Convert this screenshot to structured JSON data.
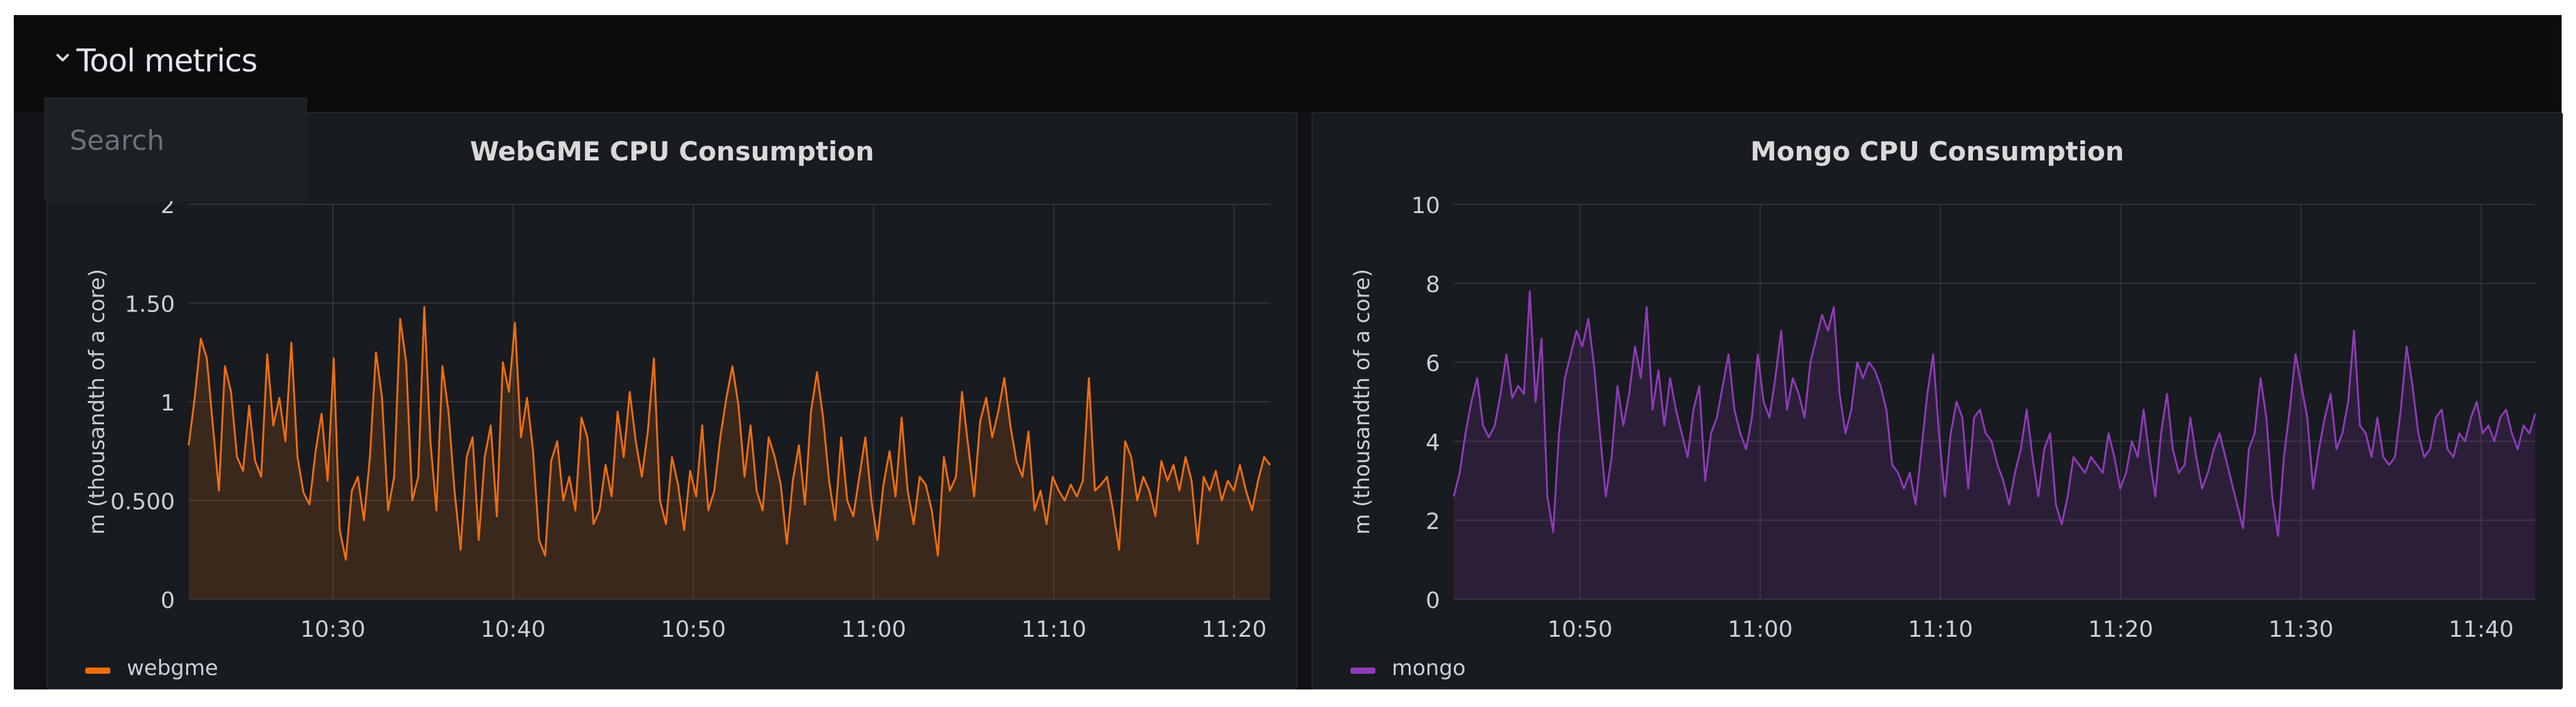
{
  "section": {
    "title": "Tool metrics"
  },
  "search": {
    "placeholder": "Search"
  },
  "panels": [
    {
      "title": "WebGME CPU Consumption",
      "legend": "webgme",
      "color": "#ef6e0c"
    },
    {
      "title": "Mongo CPU Consumption",
      "legend": "mongo",
      "color": "#8f3bb8"
    }
  ],
  "chart_data": [
    {
      "type": "area",
      "title": "WebGME CPU Consumption",
      "xlabel": "",
      "ylabel": "m (thousandth of a core)",
      "ylim": [
        0,
        2
      ],
      "yticks": [
        "0",
        "0.500",
        "1",
        "1.50",
        "2"
      ],
      "xlim": [
        "10:22",
        "11:22"
      ],
      "xticks": [
        "10:30",
        "10:40",
        "10:50",
        "11:00",
        "11:10",
        "11:20"
      ],
      "grid": true,
      "legend_position": "bottom-left",
      "series": [
        {
          "name": "webgme",
          "color": "#ef6e0c",
          "x_start": "10:22",
          "x_end": "11:22",
          "values": [
            0.78,
            1.02,
            1.32,
            1.22,
            0.88,
            0.55,
            1.18,
            1.05,
            0.72,
            0.65,
            0.98,
            0.7,
            0.62,
            1.24,
            0.88,
            1.02,
            0.8,
            1.3,
            0.72,
            0.54,
            0.48,
            0.75,
            0.94,
            0.6,
            1.22,
            0.35,
            0.2,
            0.55,
            0.62,
            0.4,
            0.72,
            1.25,
            1.02,
            0.45,
            0.62,
            1.42,
            1.2,
            0.5,
            0.62,
            1.48,
            0.8,
            0.45,
            1.18,
            0.95,
            0.55,
            0.25,
            0.72,
            0.82,
            0.3,
            0.72,
            0.88,
            0.42,
            1.2,
            1.05,
            1.4,
            0.82,
            1.02,
            0.75,
            0.3,
            0.22,
            0.7,
            0.8,
            0.5,
            0.62,
            0.45,
            0.92,
            0.82,
            0.38,
            0.45,
            0.68,
            0.52,
            0.95,
            0.72,
            1.05,
            0.8,
            0.62,
            0.85,
            1.22,
            0.5,
            0.38,
            0.72,
            0.58,
            0.35,
            0.65,
            0.52,
            0.88,
            0.45,
            0.55,
            0.82,
            1.02,
            1.18,
            0.98,
            0.62,
            0.88,
            0.55,
            0.45,
            0.82,
            0.72,
            0.58,
            0.28,
            0.6,
            0.78,
            0.48,
            0.95,
            1.15,
            0.92,
            0.6,
            0.4,
            0.82,
            0.5,
            0.42,
            0.62,
            0.82,
            0.5,
            0.3,
            0.58,
            0.75,
            0.52,
            0.92,
            0.55,
            0.38,
            0.62,
            0.58,
            0.45,
            0.22,
            0.72,
            0.55,
            0.62,
            1.05,
            0.78,
            0.52,
            0.9,
            1.02,
            0.82,
            0.95,
            1.12,
            0.88,
            0.7,
            0.62,
            0.85,
            0.45,
            0.55,
            0.38,
            0.62,
            0.55,
            0.5,
            0.58,
            0.52,
            0.6,
            1.12,
            0.55,
            0.58,
            0.62,
            0.45,
            0.25,
            0.8,
            0.72,
            0.5,
            0.62,
            0.55,
            0.42,
            0.7,
            0.6,
            0.68,
            0.55,
            0.72,
            0.6,
            0.28,
            0.62,
            0.55,
            0.65,
            0.5,
            0.6,
            0.55,
            0.68,
            0.55,
            0.45,
            0.6,
            0.72,
            0.68
          ]
        }
      ]
    },
    {
      "type": "area",
      "title": "Mongo CPU Consumption",
      "xlabel": "",
      "ylabel": "m (thousandth of a core)",
      "ylim": [
        0,
        10
      ],
      "yticks": [
        "0",
        "2",
        "4",
        "6",
        "8",
        "10"
      ],
      "xlim": [
        "10:43",
        "11:43"
      ],
      "xticks": [
        "10:50",
        "11:00",
        "11:10",
        "11:20",
        "11:30",
        "11:40"
      ],
      "grid": true,
      "legend_position": "bottom-left",
      "series": [
        {
          "name": "mongo",
          "color": "#8f3bb8",
          "x_start": "10:43",
          "x_end": "11:43",
          "values": [
            2.6,
            3.2,
            4.2,
            5.0,
            5.6,
            4.4,
            4.1,
            4.4,
            5.2,
            6.2,
            5.1,
            5.4,
            5.2,
            7.8,
            5.0,
            6.6,
            2.6,
            1.7,
            4.2,
            5.6,
            6.2,
            6.8,
            6.4,
            7.1,
            5.9,
            4.2,
            2.6,
            3.6,
            5.4,
            4.4,
            5.2,
            6.4,
            5.6,
            7.4,
            4.8,
            5.8,
            4.4,
            5.6,
            4.8,
            4.2,
            3.6,
            4.8,
            5.4,
            3.0,
            4.2,
            4.6,
            5.4,
            6.2,
            4.8,
            4.2,
            3.8,
            4.6,
            6.2,
            5.0,
            4.6,
            5.6,
            6.8,
            4.8,
            5.6,
            5.2,
            4.6,
            6.0,
            6.6,
            7.2,
            6.8,
            7.4,
            5.2,
            4.2,
            4.8,
            6.0,
            5.6,
            6.0,
            5.8,
            5.4,
            4.8,
            3.4,
            3.2,
            2.8,
            3.2,
            2.4,
            3.8,
            5.2,
            6.2,
            4.2,
            2.6,
            4.2,
            5.0,
            4.6,
            2.8,
            4.6,
            4.8,
            4.2,
            4.0,
            3.4,
            3.0,
            2.4,
            3.2,
            3.8,
            4.8,
            3.6,
            2.6,
            3.8,
            4.2,
            2.4,
            1.9,
            2.6,
            3.6,
            3.4,
            3.2,
            3.6,
            3.4,
            3.2,
            4.2,
            3.6,
            2.8,
            3.2,
            4.0,
            3.6,
            4.8,
            3.6,
            2.6,
            4.2,
            5.2,
            3.8,
            3.2,
            3.4,
            4.6,
            3.6,
            2.8,
            3.2,
            3.8,
            4.2,
            3.6,
            3.0,
            2.4,
            1.8,
            3.8,
            4.2,
            5.6,
            4.6,
            2.6,
            1.6,
            3.6,
            4.8,
            6.2,
            5.4,
            4.6,
            2.8,
            3.8,
            4.6,
            5.2,
            3.8,
            4.2,
            5.0,
            6.8,
            4.4,
            4.2,
            3.6,
            4.6,
            3.6,
            3.4,
            3.6,
            4.8,
            6.4,
            5.4,
            4.2,
            3.6,
            3.8,
            4.6,
            4.8,
            3.8,
            3.6,
            4.2,
            4.0,
            4.6,
            5.0,
            4.2,
            4.4,
            4.0,
            4.6,
            4.8,
            4.2,
            3.8,
            4.4,
            4.2,
            4.7
          ]
        }
      ]
    }
  ]
}
